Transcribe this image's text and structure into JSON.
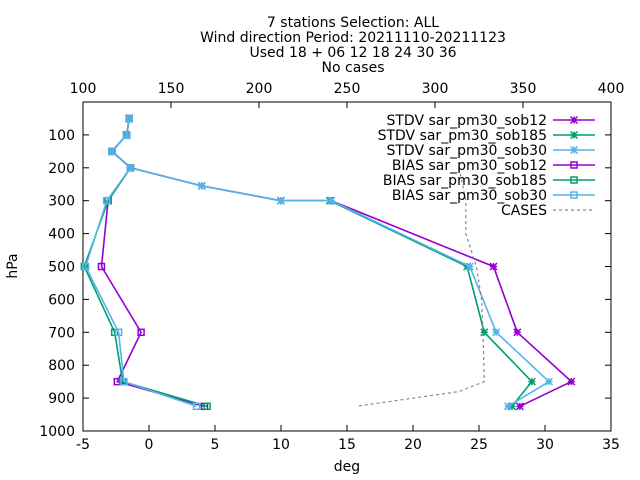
{
  "chart_data": {
    "type": "line",
    "title_lines": [
      "7 stations Selection: ALL",
      "Wind direction  Period: 20211110-20211123",
      "Used 18 + 06 12 18 24 30 36",
      "No cases"
    ],
    "xlabel": "deg",
    "ylabel": "hPa",
    "xlim": [
      -5,
      35
    ],
    "ylim": [
      1000,
      0
    ],
    "x_ticks": [
      -5,
      0,
      5,
      10,
      15,
      20,
      25,
      30,
      35
    ],
    "y_ticks": [
      100,
      200,
      300,
      400,
      500,
      600,
      700,
      800,
      900,
      1000
    ],
    "x2lim": [
      100,
      400
    ],
    "x2_ticks": [
      100,
      150,
      200,
      250,
      300,
      350,
      400
    ],
    "legend_position": "top-right",
    "grid": false,
    "series": [
      {
        "name": "STDV sar_pm30_sob12",
        "color": "#9400d3",
        "marker": "star",
        "axis": "x1",
        "points": [
          [
            -1.5,
            50
          ],
          [
            -1.7,
            100
          ],
          [
            -2.8,
            150
          ],
          [
            -1.4,
            200
          ],
          [
            4.0,
            255
          ],
          [
            10.0,
            300
          ],
          [
            13.8,
            300
          ],
          [
            26.1,
            500
          ],
          [
            27.9,
            700
          ],
          [
            32.0,
            850
          ],
          [
            28.1,
            925
          ]
        ]
      },
      {
        "name": "STDV sar_pm30_sob185",
        "color": "#009e73",
        "marker": "star",
        "axis": "x1",
        "points": [
          [
            -1.5,
            50
          ],
          [
            -1.7,
            100
          ],
          [
            -2.8,
            150
          ],
          [
            -1.4,
            200
          ],
          [
            4.0,
            255
          ],
          [
            10.0,
            300
          ],
          [
            13.7,
            300
          ],
          [
            24.1,
            500
          ],
          [
            25.4,
            700
          ],
          [
            29.0,
            850
          ],
          [
            27.5,
            925
          ]
        ]
      },
      {
        "name": "STDV sar_pm30_sob30",
        "color": "#56b4e9",
        "marker": "star",
        "axis": "x1",
        "points": [
          [
            -1.5,
            50
          ],
          [
            -1.7,
            100
          ],
          [
            -2.8,
            150
          ],
          [
            -1.4,
            200
          ],
          [
            4.0,
            255
          ],
          [
            10.0,
            300
          ],
          [
            13.8,
            300
          ],
          [
            24.3,
            500
          ],
          [
            26.3,
            700
          ],
          [
            30.3,
            850
          ],
          [
            27.2,
            925
          ]
        ]
      },
      {
        "name": "BIAS sar_pm30_sob12",
        "color": "#9400d3",
        "marker": "square",
        "axis": "x2",
        "points": [
          [
            -1.5,
            50
          ],
          [
            -1.7,
            100
          ],
          [
            -2.8,
            150
          ],
          [
            -1.4,
            200
          ],
          [
            -3.1,
            300
          ],
          [
            -3.6,
            500
          ],
          [
            -0.6,
            700
          ],
          [
            -2.4,
            850
          ],
          [
            4.2,
            925
          ]
        ]
      },
      {
        "name": "BIAS sar_pm30_sob185",
        "color": "#009e73",
        "marker": "square",
        "axis": "x2",
        "points": [
          [
            -1.5,
            50
          ],
          [
            -1.7,
            100
          ],
          [
            -2.8,
            150
          ],
          [
            -1.4,
            200
          ],
          [
            -3.1,
            300
          ],
          [
            -4.9,
            500
          ],
          [
            -2.6,
            700
          ],
          [
            -2.0,
            850
          ],
          [
            4.4,
            925
          ]
        ]
      },
      {
        "name": "BIAS sar_pm30_sob30",
        "color": "#56b4e9",
        "marker": "square",
        "axis": "x2",
        "points": [
          [
            -1.5,
            50
          ],
          [
            -1.7,
            100
          ],
          [
            -2.8,
            150
          ],
          [
            -1.4,
            200
          ],
          [
            -3.2,
            300
          ],
          [
            -4.8,
            500
          ],
          [
            -2.3,
            700
          ],
          [
            -1.9,
            850
          ],
          [
            3.6,
            925
          ]
        ]
      },
      {
        "name": "CASES",
        "color": "#888888",
        "marker": "none",
        "dashed": true,
        "axis": "x2",
        "points": [
          [
            23.5,
            200
          ],
          [
            24.0,
            300
          ],
          [
            24.0,
            400
          ],
          [
            24.8,
            500
          ],
          [
            25.2,
            600
          ],
          [
            25.3,
            700
          ],
          [
            25.4,
            850
          ],
          [
            23.5,
            880
          ],
          [
            15.7,
            925
          ]
        ]
      }
    ]
  }
}
